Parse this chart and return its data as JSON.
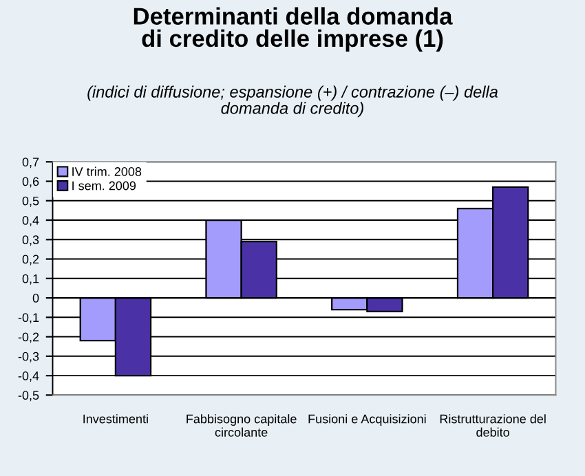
{
  "chart_data": {
    "type": "bar",
    "title": "Determinanti della domanda\ndi credito delle imprese (1)",
    "subtitle": "(indici di diffusione; espansione (+) / contrazione (–) della\ndomanda di credito)",
    "categories": [
      "Investimenti",
      "Fabbisogno capitale\ncircolante",
      "Fusioni e Acquisizioni",
      "Ristrutturazione del\ndebito"
    ],
    "series": [
      {
        "name": "IV trim. 2008",
        "color": "#a49cfc",
        "values": [
          -0.22,
          0.4,
          -0.06,
          0.46
        ]
      },
      {
        "name": "I sem. 2009",
        "color": "#4a32a6",
        "values": [
          -0.4,
          0.29,
          -0.07,
          0.57
        ]
      }
    ],
    "ylim": [
      -0.5,
      0.7
    ],
    "yticks": [
      {
        "value": -0.5,
        "label": "-0,5"
      },
      {
        "value": -0.4,
        "label": "-0,4"
      },
      {
        "value": -0.3,
        "label": "-0,3"
      },
      {
        "value": -0.2,
        "label": "-0,2"
      },
      {
        "value": -0.1,
        "label": "-0,1"
      },
      0,
      {
        "value": 0.1,
        "label": "0,1"
      },
      {
        "value": 0.2,
        "label": "0,2"
      },
      {
        "value": 0.3,
        "label": "0,3"
      },
      {
        "value": 0.4,
        "label": "0,4"
      },
      {
        "value": 0.5,
        "label": "0,5"
      },
      {
        "value": 0.6,
        "label": "0,6"
      },
      {
        "value": 0.7,
        "label": "0,7"
      }
    ],
    "grid": "y",
    "legend": "top left"
  }
}
